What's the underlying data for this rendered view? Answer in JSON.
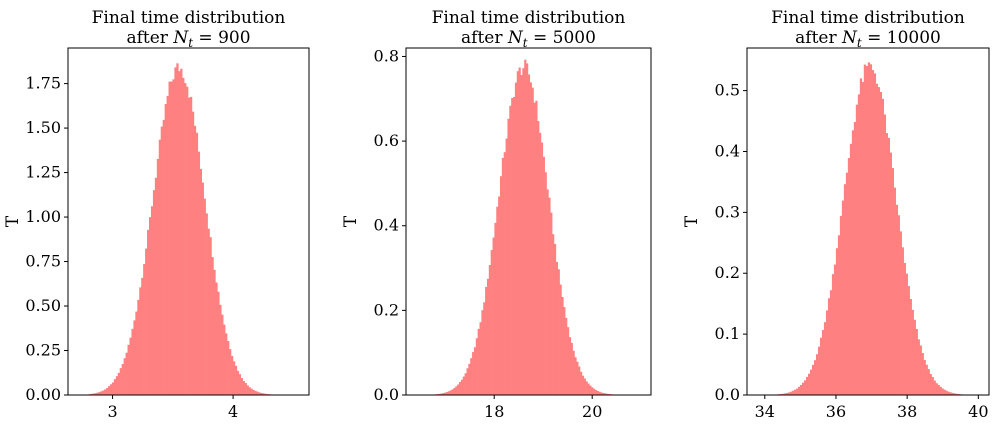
{
  "chart_data": [
    {
      "type": "bar",
      "title_line1": "Final time distribution",
      "title_line2": "after N_t = 900",
      "title_main": "after ",
      "title_var": "N",
      "title_sub": "t",
      "title_val": " = 900",
      "ylabel": "T",
      "xlabel": "",
      "color": "#ff8080",
      "xlim": [
        2.63,
        4.63
      ],
      "ylim": [
        0,
        1.95
      ],
      "xticks": [
        3,
        4
      ],
      "yticks": [
        0.0,
        0.25,
        0.5,
        0.75,
        1.0,
        1.25,
        1.5,
        1.75
      ],
      "ytick_labels": [
        "0.00",
        "0.25",
        "0.50",
        "0.75",
        "1.00",
        "1.25",
        "1.50",
        "1.75"
      ],
      "mean": 3.55,
      "sd": 0.215,
      "peak": 1.84,
      "range": [
        2.8,
        4.42
      ],
      "bins": 100
    },
    {
      "type": "bar",
      "title_line1": "Final time distribution",
      "title_line2": "after N_t = 5000",
      "title_main": "after ",
      "title_var": "N",
      "title_sub": "t",
      "title_val": " = 5000",
      "ylabel": "T",
      "xlabel": "",
      "color": "#ff8080",
      "xlim": [
        16.2,
        21.2
      ],
      "ylim": [
        0,
        0.82
      ],
      "xticks": [
        18,
        20
      ],
      "yticks": [
        0.0,
        0.2,
        0.4,
        0.6,
        0.8
      ],
      "ytick_labels": [
        "0.0",
        "0.2",
        "0.4",
        "0.6",
        "0.8"
      ],
      "mean": 18.6,
      "sd": 0.51,
      "peak": 0.775,
      "range": [
        16.75,
        20.55
      ],
      "bins": 100
    },
    {
      "type": "bar",
      "title_line1": "Final time distribution",
      "title_line2": "after N_t = 10000",
      "title_main": "after ",
      "title_var": "N",
      "title_sub": "t",
      "title_val": " = 10000",
      "ylabel": "T",
      "xlabel": "",
      "color": "#ff8080",
      "xlim": [
        33.5,
        40.3
      ],
      "ylim": [
        0,
        0.57
      ],
      "xticks": [
        34,
        36,
        38,
        40
      ],
      "yticks": [
        0.0,
        0.1,
        0.2,
        0.3,
        0.4,
        0.5
      ],
      "ytick_labels": [
        "0.0",
        "0.1",
        "0.2",
        "0.3",
        "0.4",
        "0.5"
      ],
      "mean": 36.95,
      "sd": 0.73,
      "peak": 0.54,
      "range": [
        34.15,
        39.75
      ],
      "bins": 100
    }
  ]
}
